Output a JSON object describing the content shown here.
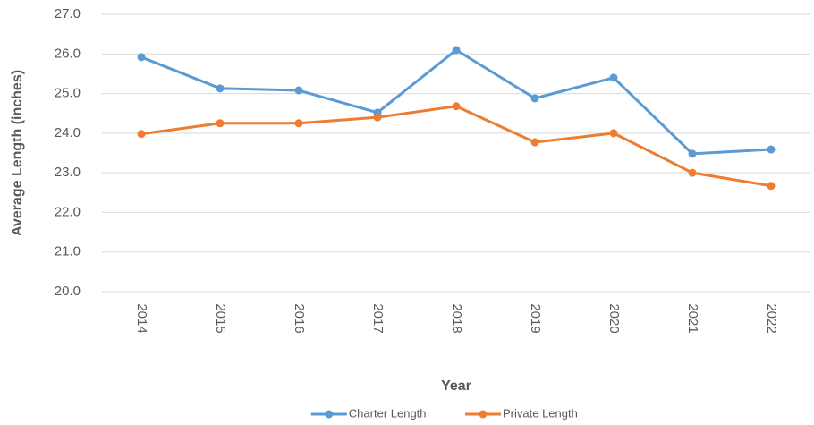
{
  "chart_data": {
    "type": "line",
    "x_label": "Year",
    "y_label": "Average Length (inches)",
    "categories": [
      "2014",
      "2015",
      "2016",
      "2017",
      "2018",
      "2019",
      "2020",
      "2021",
      "2022"
    ],
    "series": [
      {
        "name": "Charter Length",
        "color": "#5b9bd5",
        "values": [
          25.92,
          25.13,
          25.08,
          24.52,
          26.1,
          24.88,
          25.4,
          23.48,
          23.59
        ]
      },
      {
        "name": "Private Length",
        "color": "#ed7d31",
        "values": [
          23.98,
          24.25,
          24.25,
          24.4,
          24.68,
          23.77,
          24.0,
          23.0,
          22.67
        ]
      }
    ],
    "ylim": [
      20,
      27
    ],
    "yticks": [
      {
        "value": 20,
        "label": "20.0"
      },
      {
        "value": 21,
        "label": "21.0"
      },
      {
        "value": 22,
        "label": "22.0"
      },
      {
        "value": 23,
        "label": "23.0"
      },
      {
        "value": 24,
        "label": "24.0"
      },
      {
        "value": 25,
        "label": "25.0"
      },
      {
        "value": 26,
        "label": "26.0"
      },
      {
        "value": 27,
        "label": "27.0"
      }
    ],
    "grid": true,
    "legend": "bottom"
  }
}
